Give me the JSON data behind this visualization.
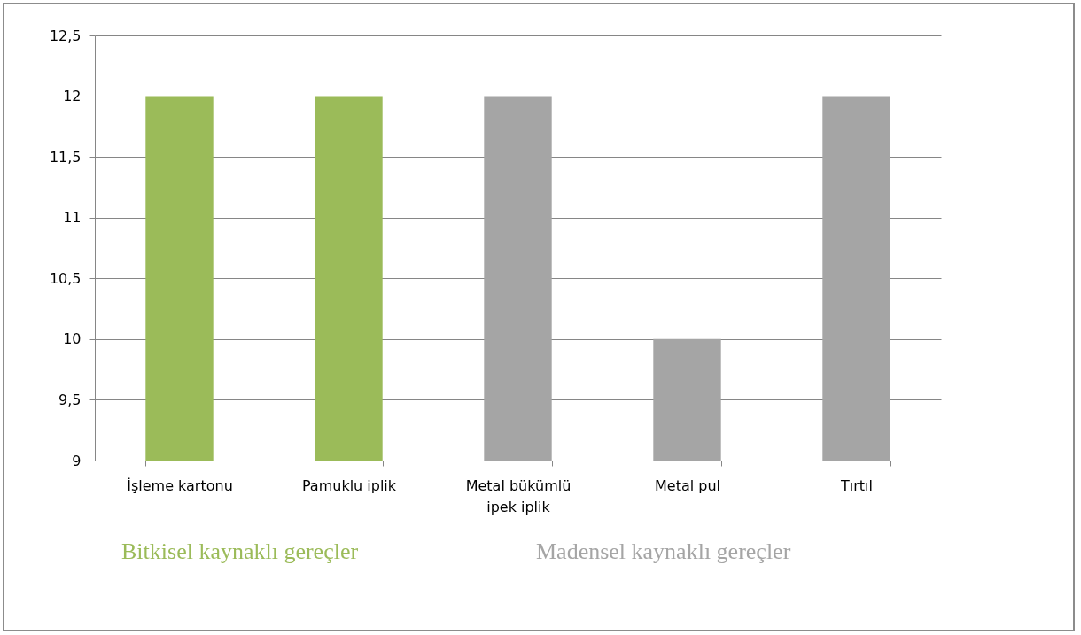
{
  "chart_data": {
    "type": "bar",
    "categories": [
      "İşleme kartonu",
      "Pamuklu iplik",
      "Metal bükümlü ipek iplik",
      "Metal pul",
      "Tırtıl"
    ],
    "series": [
      {
        "name": "Bitkisel kaynaklı gereçler",
        "color": "#9bbb59",
        "values": [
          12,
          12,
          null,
          null,
          null
        ]
      },
      {
        "name": "Madensel kaynaklı gereçler",
        "color": "#a5a5a5",
        "values": [
          null,
          null,
          12,
          10,
          12
        ]
      }
    ],
    "ylim": [
      9,
      12.5
    ],
    "yticks": [
      9,
      {
        "value": 9.5,
        "label": "9,5"
      },
      10,
      {
        "value": 10.5,
        "label": "10,5"
      },
      11,
      {
        "value": 11.5,
        "label": "11,5"
      },
      12,
      {
        "value": 12.5,
        "label": "12,5"
      }
    ],
    "grid": "y",
    "legend": "bottom"
  }
}
